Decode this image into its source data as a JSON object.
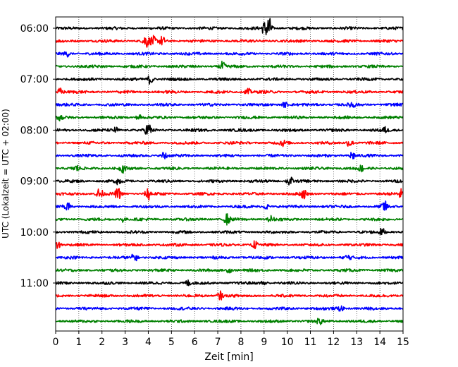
{
  "chart_data": {
    "type": "line",
    "title": "",
    "xlabel": "Zeit  [min]",
    "ylabel": "UTC (Lokalzeit = UTC + 02:00)",
    "xlim": [
      0,
      15
    ],
    "xticks": [
      0,
      1,
      2,
      3,
      4,
      5,
      6,
      7,
      8,
      9,
      10,
      11,
      12,
      13,
      14,
      15
    ],
    "yticks": [
      {
        "time": "06:00",
        "row": 0
      },
      {
        "time": "07:00",
        "row": 4
      },
      {
        "time": "08:00",
        "row": 8
      },
      {
        "time": "09:00",
        "row": 12
      },
      {
        "time": "10:00",
        "row": 16
      },
      {
        "time": "11:00",
        "row": 20
      }
    ],
    "grid": "vertical dotted at each minute",
    "row_interval_minutes": 15,
    "color_cycle": [
      "#000000",
      "#ff0000",
      "#0000ff",
      "#008000"
    ],
    "series": [
      {
        "start": "06:00",
        "color": "#000000",
        "events": [
          {
            "t": 9.2,
            "amp": 1.4
          },
          {
            "t": 9.0,
            "amp": 0.6
          }
        ]
      },
      {
        "start": "06:15",
        "color": "#ff0000",
        "events": [
          {
            "t": 3.9,
            "amp": 0.8
          },
          {
            "t": 4.6,
            "amp": 0.5
          },
          {
            "t": 4.2,
            "amp": 0.5
          }
        ]
      },
      {
        "start": "06:30",
        "color": "#0000ff",
        "events": [
          {
            "t": 0.5,
            "amp": 0.3
          }
        ]
      },
      {
        "start": "06:45",
        "color": "#008000",
        "events": [
          {
            "t": 7.2,
            "amp": 0.5
          }
        ]
      },
      {
        "start": "07:00",
        "color": "#000000",
        "events": [
          {
            "t": 4.1,
            "amp": 0.6
          }
        ]
      },
      {
        "start": "07:15",
        "color": "#ff0000",
        "events": [
          {
            "t": 0.2,
            "amp": 0.4
          },
          {
            "t": 8.3,
            "amp": 0.4
          }
        ]
      },
      {
        "start": "07:30",
        "color": "#0000ff",
        "events": [
          {
            "t": 9.9,
            "amp": 0.3
          },
          {
            "t": 12.8,
            "amp": 0.4
          }
        ]
      },
      {
        "start": "07:45",
        "color": "#008000",
        "events": [
          {
            "t": 0.2,
            "amp": 0.3
          },
          {
            "t": 3.6,
            "amp": 0.3
          }
        ]
      },
      {
        "start": "08:00",
        "color": "#000000",
        "events": [
          {
            "t": 4.0,
            "amp": 0.8
          },
          {
            "t": 2.6,
            "amp": 0.3
          },
          {
            "t": 14.2,
            "amp": 0.3
          }
        ]
      },
      {
        "start": "08:15",
        "color": "#ff0000",
        "events": [
          {
            "t": 12.7,
            "amp": 0.5
          },
          {
            "t": 9.8,
            "amp": 0.3
          }
        ]
      },
      {
        "start": "08:30",
        "color": "#0000ff",
        "events": [
          {
            "t": 4.7,
            "amp": 0.5
          },
          {
            "t": 12.8,
            "amp": 0.5
          }
        ]
      },
      {
        "start": "08:45",
        "color": "#008000",
        "events": [
          {
            "t": 2.9,
            "amp": 0.4
          },
          {
            "t": 0.9,
            "amp": 0.3
          },
          {
            "t": 13.2,
            "amp": 0.3
          }
        ]
      },
      {
        "start": "09:00",
        "color": "#000000",
        "events": [
          {
            "t": 10.1,
            "amp": 0.6
          },
          {
            "t": 2.7,
            "amp": 0.3
          }
        ]
      },
      {
        "start": "09:15",
        "color": "#ff0000",
        "events": [
          {
            "t": 1.9,
            "amp": 0.7
          },
          {
            "t": 2.7,
            "amp": 0.6
          },
          {
            "t": 4.0,
            "amp": 0.7
          },
          {
            "t": 10.7,
            "amp": 0.5
          },
          {
            "t": 14.9,
            "amp": 0.5
          }
        ]
      },
      {
        "start": "09:30",
        "color": "#0000ff",
        "events": [
          {
            "t": 0.5,
            "amp": 0.5
          },
          {
            "t": 14.2,
            "amp": 0.6
          },
          {
            "t": 9.1,
            "amp": 0.3
          }
        ]
      },
      {
        "start": "09:45",
        "color": "#008000",
        "events": [
          {
            "t": 7.4,
            "amp": 0.6
          },
          {
            "t": 9.3,
            "amp": 0.4
          },
          {
            "t": 2.9,
            "amp": 0.3
          }
        ]
      },
      {
        "start": "10:00",
        "color": "#000000",
        "events": [
          {
            "t": 14.1,
            "amp": 0.4
          }
        ]
      },
      {
        "start": "10:15",
        "color": "#ff0000",
        "events": [
          {
            "t": 0.1,
            "amp": 0.5
          },
          {
            "t": 8.6,
            "amp": 0.4
          }
        ]
      },
      {
        "start": "10:30",
        "color": "#0000ff",
        "events": [
          {
            "t": 3.4,
            "amp": 0.5
          },
          {
            "t": 12.6,
            "amp": 0.3
          }
        ]
      },
      {
        "start": "10:45",
        "color": "#008000",
        "events": [
          {
            "t": 7.5,
            "amp": 0.3
          }
        ]
      },
      {
        "start": "11:00",
        "color": "#000000",
        "events": [
          {
            "t": 5.7,
            "amp": 0.3
          },
          {
            "t": 9.0,
            "amp": 0.3
          }
        ]
      },
      {
        "start": "11:15",
        "color": "#ff0000",
        "events": [
          {
            "t": 7.1,
            "amp": 0.5
          }
        ]
      },
      {
        "start": "11:30",
        "color": "#0000ff",
        "events": [
          {
            "t": 12.3,
            "amp": 0.3
          }
        ]
      },
      {
        "start": "11:45",
        "color": "#008000",
        "events": [
          {
            "t": 11.4,
            "amp": 0.3
          }
        ]
      }
    ]
  }
}
